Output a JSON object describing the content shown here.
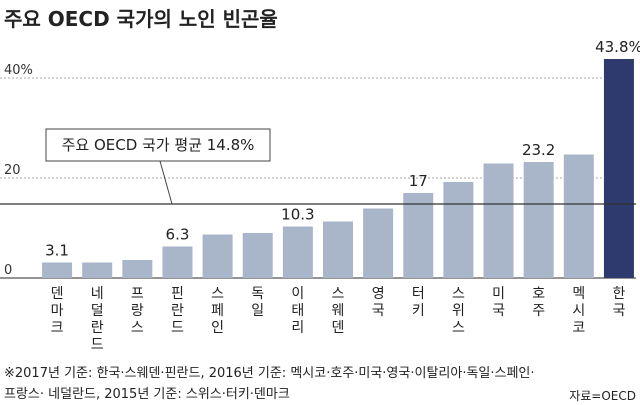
{
  "chart_data": {
    "type": "bar",
    "title": "주요 OECD 국가의 노인 빈곤율",
    "categories": [
      "덴마크",
      "네덜란드",
      "프랑스",
      "핀란드",
      "스페인",
      "독일",
      "이태리",
      "스웨덴",
      "영국",
      "터키",
      "스위스",
      "미국",
      "호주",
      "멕시코",
      "한국"
    ],
    "values": [
      3.1,
      3.1,
      3.6,
      6.3,
      8.7,
      9.0,
      10.3,
      11.3,
      13.9,
      17.0,
      19.2,
      22.9,
      23.2,
      24.7,
      43.8
    ],
    "data_labels": {
      "0": "3.1",
      "3": "6.3",
      "6": "10.3",
      "9": "17",
      "12": "23.2",
      "14": "43.8%"
    },
    "yticks": [
      "0",
      "20",
      "40%"
    ],
    "ytick_values": [
      0,
      20,
      40
    ],
    "ylim": [
      0,
      46
    ],
    "average": {
      "label": "주요 OECD 국가 평균 14.8%",
      "value": 14.8
    },
    "highlight_index": 14,
    "colors": {
      "bar": "#a9b6ca",
      "highlight": "#2e3a6e",
      "grid": "#888888",
      "avg_line": "#333333"
    }
  },
  "notes": {
    "line1": "※2017년 기준: 한국·스웨덴·핀란드, 2016년 기준: 멕시코·호주·미국·영국·이탈리아·독일·스페인·",
    "line2": "프랑스· 네덜란드, 2015년 기준: 스위스·터키·덴마크"
  },
  "source": "자료=OECD"
}
